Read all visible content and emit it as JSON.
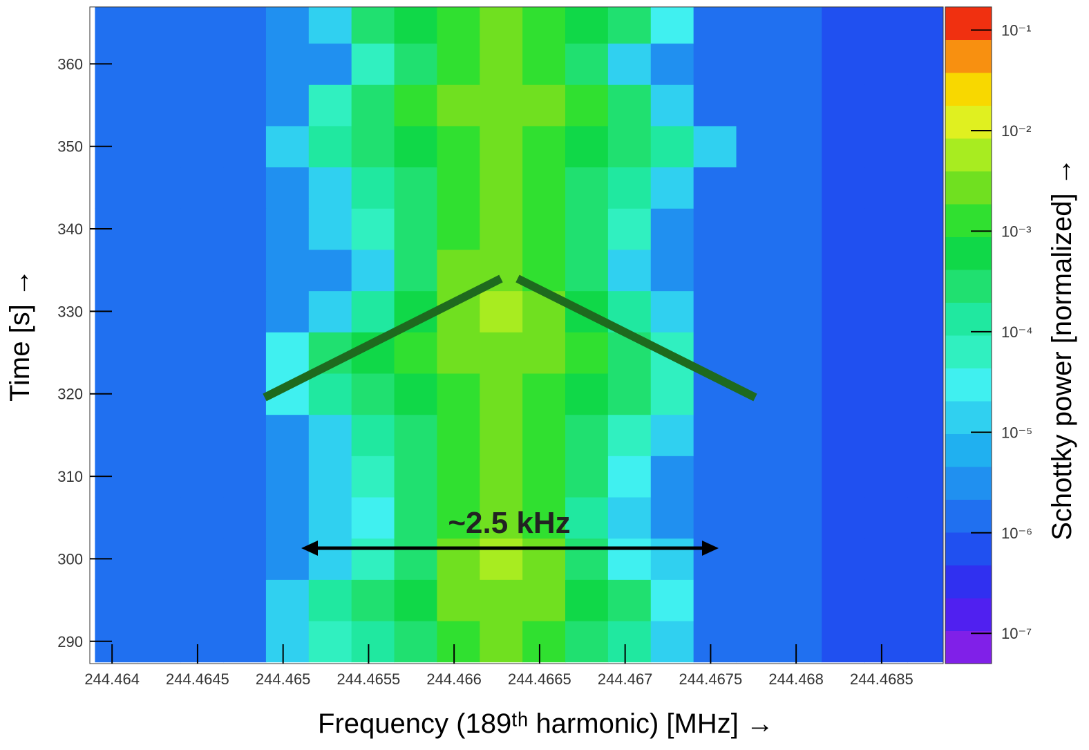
{
  "chart_data": {
    "type": "heatmap",
    "xlabel": "Frequency (189ᵗʰ harmonic) [MHz]  →",
    "ylabel": "Time [s]  →",
    "colorbar_label": "Schottky power [normalized]  →",
    "annotation": "~2.5 kHz",
    "xlim": [
      244.46387,
      244.46886
    ],
    "ylim": [
      287.3,
      366.9
    ],
    "xticks": [
      244.464,
      244.4645,
      244.465,
      244.4655,
      244.466,
      244.4665,
      244.467,
      244.4675,
      244.468,
      244.4685
    ],
    "yticks": [
      290,
      300,
      310,
      320,
      330,
      340,
      350,
      360
    ],
    "zlim": [
      5e-08,
      0.17
    ],
    "zscale": "log",
    "zticks": [
      {
        "value": 1e-07,
        "label": "10⁻⁷"
      },
      {
        "value": 1e-06,
        "label": "10⁻⁶"
      },
      {
        "value": 1e-05,
        "label": "10⁻⁵"
      },
      {
        "value": 0.0001,
        "label": "10⁻⁴"
      },
      {
        "value": 0.001,
        "label": "10⁻³"
      },
      {
        "value": 0.01,
        "label": "10⁻²"
      },
      {
        "value": 0.1,
        "label": "10⁻¹"
      }
    ],
    "colors": [
      "#8020e8",
      "#5020f0",
      "#3030f0",
      "#2050f0",
      "#2070f0",
      "#2090f0",
      "#20b0f0",
      "#30d0f0",
      "#40f0f0",
      "#30f0c0",
      "#20e8a0",
      "#20e070",
      "#10d848",
      "#30e030",
      "#70e020",
      "#a8ec20",
      "#e0f020",
      "#f8d800",
      "#f89010",
      "#f03010"
    ],
    "xbins": [
      244.4639,
      244.46415,
      244.4644,
      244.46465,
      244.4649,
      244.46515,
      244.4654,
      244.46565,
      244.4659,
      244.46615,
      244.4664,
      244.46665,
      244.4669,
      244.46715,
      244.4674,
      244.46765,
      244.4679,
      244.46815,
      244.4684,
      244.46865,
      244.4689
    ],
    "ybins": [
      287.5,
      292.5,
      297.5,
      302.5,
      307.5,
      312.5,
      317.5,
      322.5,
      327.5,
      332.5,
      337.5,
      342.5,
      347.5,
      352.5,
      357.5,
      362.5,
      367.5
    ],
    "z": [
      [
        2e-06,
        2e-06,
        2e-06,
        2e-06,
        1e-05,
        5e-05,
        0.0001,
        0.0003,
        0.001,
        0.002,
        0.001,
        0.0003,
        0.0001,
        2e-05,
        2e-06,
        2e-06,
        1.5e-06,
        1e-06,
        7e-07,
        5e-07
      ],
      [
        2e-06,
        2e-06,
        2e-06,
        2e-06,
        2e-05,
        0.0001,
        0.0003,
        0.0005,
        0.002,
        0.003,
        0.002,
        0.0005,
        0.0002,
        3e-05,
        2e-06,
        2e-06,
        1.5e-06,
        1e-06,
        7e-07,
        5e-07
      ],
      [
        2e-06,
        2e-06,
        2e-06,
        2e-06,
        3e-06,
        1e-05,
        5e-05,
        0.0003,
        0.002,
        0.005,
        0.002,
        0.0002,
        3e-05,
        1e-05,
        2e-06,
        2e-06,
        1.5e-06,
        1e-06,
        7e-07,
        5e-07
      ],
      [
        2e-06,
        2e-06,
        2e-06,
        2e-06,
        3e-06,
        1e-05,
        3e-05,
        0.0002,
        0.001,
        0.003,
        0.001,
        0.0001,
        2e-05,
        3e-06,
        2e-06,
        2e-06,
        1.5e-06,
        1e-06,
        7e-07,
        5e-07
      ],
      [
        2e-06,
        2e-06,
        2e-06,
        2e-06,
        3e-06,
        1e-05,
        5e-05,
        0.0003,
        0.001,
        0.002,
        0.001,
        0.0002,
        3e-05,
        3e-06,
        2e-06,
        2e-06,
        1.5e-06,
        1e-06,
        7e-07,
        5e-07
      ],
      [
        2e-06,
        2e-06,
        2e-06,
        2e-06,
        3e-06,
        2e-05,
        0.0001,
        0.0003,
        0.001,
        0.002,
        0.001,
        0.0003,
        5e-05,
        1e-05,
        2e-06,
        2e-06,
        1.5e-06,
        1e-06,
        7e-07,
        5e-07
      ],
      [
        2e-06,
        2e-06,
        2e-06,
        2e-06,
        3e-05,
        0.0001,
        0.0003,
        0.0005,
        0.001,
        0.002,
        0.001,
        0.0005,
        0.0002,
        5e-05,
        2e-06,
        2e-06,
        1.5e-06,
        1e-06,
        7e-07,
        5e-07
      ],
      [
        2e-06,
        2e-06,
        2e-06,
        2e-06,
        3e-05,
        0.0002,
        0.0005,
        0.001,
        0.002,
        0.003,
        0.002,
        0.001,
        0.0003,
        5e-05,
        2e-06,
        2e-06,
        1.5e-06,
        1e-06,
        7e-07,
        5e-07
      ],
      [
        2e-06,
        2e-06,
        2e-06,
        2e-06,
        3e-06,
        2e-05,
        0.0001,
        0.0005,
        0.002,
        0.005,
        0.002,
        0.0005,
        0.0001,
        1e-05,
        2e-06,
        2e-06,
        1.5e-06,
        1e-06,
        7e-07,
        5e-07
      ],
      [
        2e-06,
        2e-06,
        2e-06,
        2e-06,
        3e-06,
        3e-06,
        2e-05,
        0.0002,
        0.002,
        0.003,
        0.001,
        0.0002,
        2e-05,
        3e-06,
        2e-06,
        2e-06,
        1.5e-06,
        1e-06,
        7e-07,
        5e-07
      ],
      [
        2e-06,
        2e-06,
        2e-06,
        2e-06,
        3e-06,
        1e-05,
        5e-05,
        0.0003,
        0.001,
        0.003,
        0.001,
        0.0003,
        5e-05,
        3e-06,
        2e-06,
        2e-06,
        1.5e-06,
        1e-06,
        7e-07,
        5e-07
      ],
      [
        2e-06,
        2e-06,
        2e-06,
        2e-06,
        3e-06,
        2e-05,
        0.0001,
        0.0003,
        0.001,
        0.002,
        0.001,
        0.0003,
        0.0001,
        1e-05,
        2e-06,
        2e-06,
        1.5e-06,
        1e-06,
        7e-07,
        5e-07
      ],
      [
        2e-06,
        2e-06,
        2e-06,
        2e-06,
        2e-05,
        0.0001,
        0.0003,
        0.0005,
        0.001,
        0.002,
        0.001,
        0.0005,
        0.0003,
        0.0001,
        1e-05,
        2e-06,
        1.5e-06,
        1e-06,
        7e-07,
        5e-07
      ],
      [
        2e-06,
        2e-06,
        2e-06,
        2e-06,
        3e-06,
        5e-05,
        0.0003,
        0.001,
        0.002,
        0.003,
        0.002,
        0.001,
        0.0002,
        2e-05,
        2e-06,
        2e-06,
        1.5e-06,
        1e-06,
        7e-07,
        5e-07
      ],
      [
        2e-06,
        2e-06,
        2e-06,
        2e-06,
        3e-06,
        3e-06,
        5e-05,
        0.0003,
        0.001,
        0.002,
        0.001,
        0.0003,
        2e-05,
        3e-06,
        2e-06,
        2e-06,
        1.5e-06,
        1e-06,
        7e-07,
        5e-07
      ],
      [
        2e-06,
        2e-06,
        2e-06,
        2e-06,
        3e-06,
        2e-05,
        0.0002,
        0.0005,
        0.001,
        0.002,
        0.001,
        0.0005,
        0.0002,
        3e-05,
        2e-06,
        2e-06,
        1.5e-06,
        1e-06,
        7e-07,
        5e-07
      ]
    ]
  }
}
